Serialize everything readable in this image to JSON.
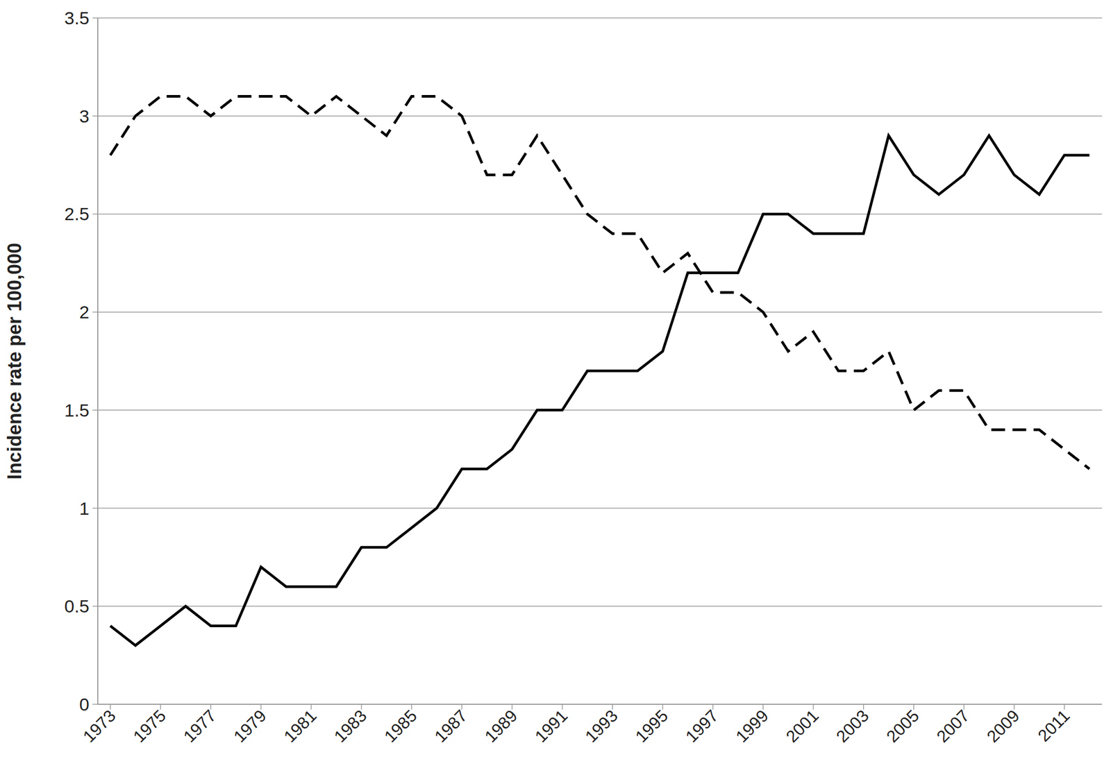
{
  "chart_data": {
    "type": "line",
    "y_label": "Incidence rate per 100,000",
    "categories": [
      "1973",
      null,
      "1975",
      null,
      "1977",
      null,
      "1979",
      null,
      "1981",
      null,
      "1983",
      null,
      "1985",
      null,
      "1987",
      null,
      "1989",
      null,
      "1991",
      null,
      "1993",
      null,
      "1995",
      null,
      "1997",
      null,
      "1999",
      null,
      "2001",
      null,
      "2003",
      null,
      "2005",
      null,
      "2007",
      null,
      "2009",
      null,
      "2011",
      null
    ],
    "series": [
      {
        "color": "#000000",
        "line_style": "solid",
        "values": [
          0.4,
          0.3,
          0.4,
          0.5,
          0.4,
          0.4,
          0.7,
          0.6,
          0.6,
          0.6,
          0.8,
          0.8,
          0.9,
          1.0,
          1.2,
          1.2,
          1.3,
          1.5,
          1.5,
          1.7,
          1.7,
          1.7,
          1.8,
          2.2,
          2.2,
          2.2,
          2.5,
          2.5,
          2.4,
          2.4,
          2.4,
          2.9,
          2.7,
          2.6,
          2.7,
          2.9,
          2.7,
          2.6,
          2.8,
          2.8
        ]
      },
      {
        "color": "#000000",
        "line_style": "dashed",
        "values": [
          2.8,
          3.0,
          3.1,
          3.1,
          3.0,
          3.1,
          3.1,
          3.1,
          3.0,
          3.1,
          3.0,
          2.9,
          3.1,
          3.1,
          3.0,
          2.7,
          2.7,
          2.9,
          2.7,
          2.5,
          2.4,
          2.4,
          2.2,
          2.3,
          2.1,
          2.1,
          2.0,
          1.8,
          1.9,
          1.7,
          1.7,
          1.8,
          1.5,
          1.6,
          1.6,
          1.4,
          1.4,
          1.4,
          1.3,
          1.2
        ]
      }
    ],
    "ylim": [
      0,
      3.5
    ],
    "yticks": [
      0,
      0.5,
      1,
      1.5,
      2,
      2.5,
      3,
      3.5
    ],
    "grid": true
  }
}
